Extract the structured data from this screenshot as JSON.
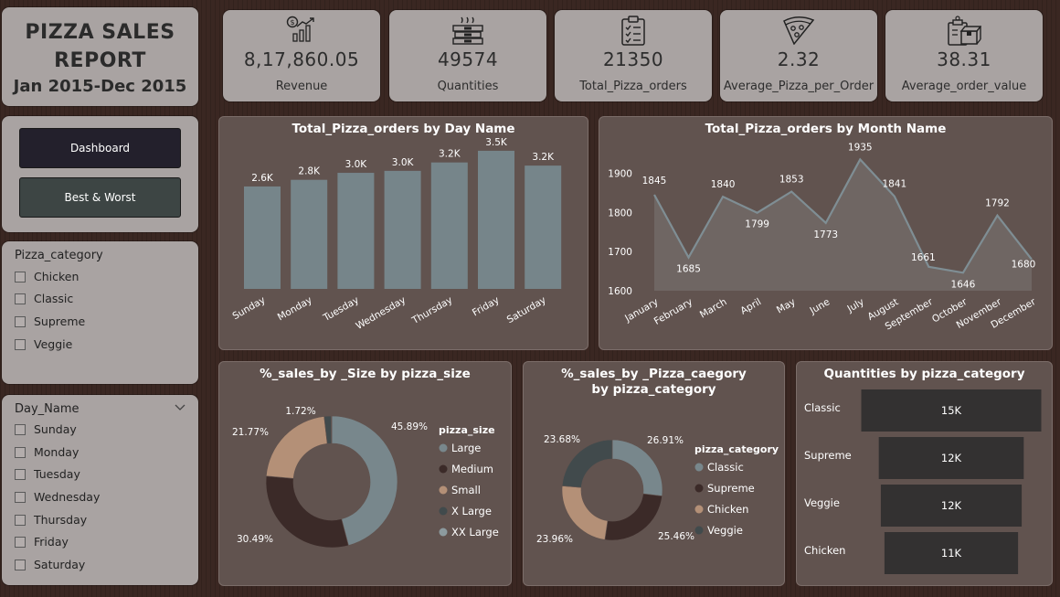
{
  "report": {
    "title_line1": "PIZZA SALES",
    "title_line2": "REPORT",
    "period": "Jan 2015-Dec 2015"
  },
  "kpis": [
    {
      "value": "8,17,860.05",
      "label": "Revenue",
      "icon": "revenue-chart-icon"
    },
    {
      "value": "49574",
      "label": "Quantities",
      "icon": "pizza-boxes-icon"
    },
    {
      "value": "21350",
      "label": "Total_Pizza_orders",
      "icon": "clipboard-checklist-icon"
    },
    {
      "value": "2.32",
      "label": "Average_Pizza_per_Order",
      "icon": "pizza-slice-icon"
    },
    {
      "value": "38.31",
      "label": "Average_order_value",
      "icon": "order-box-icon"
    }
  ],
  "nav": {
    "dashboard_label": "Dashboard",
    "best_worst_label": "Best & Worst"
  },
  "slicer_category": {
    "title": "Pizza_category",
    "options": [
      "Chicken",
      "Classic",
      "Supreme",
      "Veggie"
    ]
  },
  "slicer_day": {
    "title": "Day_Name",
    "options": [
      "Sunday",
      "Monday",
      "Tuesday",
      "Wednesday",
      "Thursday",
      "Friday",
      "Saturday"
    ]
  },
  "colors": {
    "bar": "#76858a",
    "area": "#6f6663",
    "line": "#7f8e94",
    "large": "#78878c",
    "medium": "#3b2a28",
    "small": "#b49077",
    "xlarge": "#414a4c",
    "xxlarge": "#8c9a9e",
    "qbar": "#333131"
  },
  "chart_data": [
    {
      "type": "bar",
      "title": "Total_Pizza_orders by Day Name",
      "categories": [
        "Sunday",
        "Monday",
        "Tuesday",
        "Wednesday",
        "Thursday",
        "Friday",
        "Saturday"
      ],
      "values": [
        2624,
        2794,
        2973,
        3024,
        3239,
        3538,
        3158
      ],
      "data_labels": [
        "2.6K",
        "2.8K",
        "3.0K",
        "3.0K",
        "3.2K",
        "3.5K",
        "3.2K"
      ],
      "ylim": [
        0,
        3700
      ]
    },
    {
      "type": "area",
      "title": "Total_Pizza_orders by Month Name",
      "categories": [
        "January",
        "February",
        "March",
        "April",
        "May",
        "June",
        "July",
        "August",
        "September",
        "October",
        "November",
        "December"
      ],
      "values": [
        1845,
        1685,
        1840,
        1799,
        1853,
        1773,
        1935,
        1841,
        1661,
        1646,
        1792,
        1680
      ],
      "yticks": [
        "1900",
        "1800",
        "1700",
        "1600"
      ],
      "ylim": [
        1600,
        1950
      ]
    },
    {
      "type": "pie",
      "title": "%_sales_by _Size by pizza_size",
      "legend_title": "pizza_size",
      "series": [
        {
          "name": "Large",
          "value": 45.89,
          "label": "45.89%"
        },
        {
          "name": "Medium",
          "value": 30.49,
          "label": "30.49%"
        },
        {
          "name": "Small",
          "value": 21.77,
          "label": "21.77%"
        },
        {
          "name": "X Large",
          "value": 1.72,
          "label": "1.72%"
        },
        {
          "name": "XX Large",
          "value": 0.12,
          "label": ""
        }
      ]
    },
    {
      "type": "pie",
      "title": "%_sales_by _Pizza_caegory by pizza_category",
      "legend_title": "pizza_category",
      "series": [
        {
          "name": "Classic",
          "value": 26.91,
          "label": "26.91%"
        },
        {
          "name": "Supreme",
          "value": 25.46,
          "label": "25.46%"
        },
        {
          "name": "Chicken",
          "value": 23.96,
          "label": "23.96%"
        },
        {
          "name": "Veggie",
          "value": 23.68,
          "label": "23.68%"
        }
      ]
    },
    {
      "type": "bar",
      "title": "Quantities by pizza_category",
      "categories": [
        "Classic",
        "Supreme",
        "Veggie",
        "Chicken"
      ],
      "values": [
        14888,
        11987,
        11649,
        11050
      ],
      "data_labels": [
        "15K",
        "12K",
        "12K",
        "11K"
      ]
    }
  ]
}
